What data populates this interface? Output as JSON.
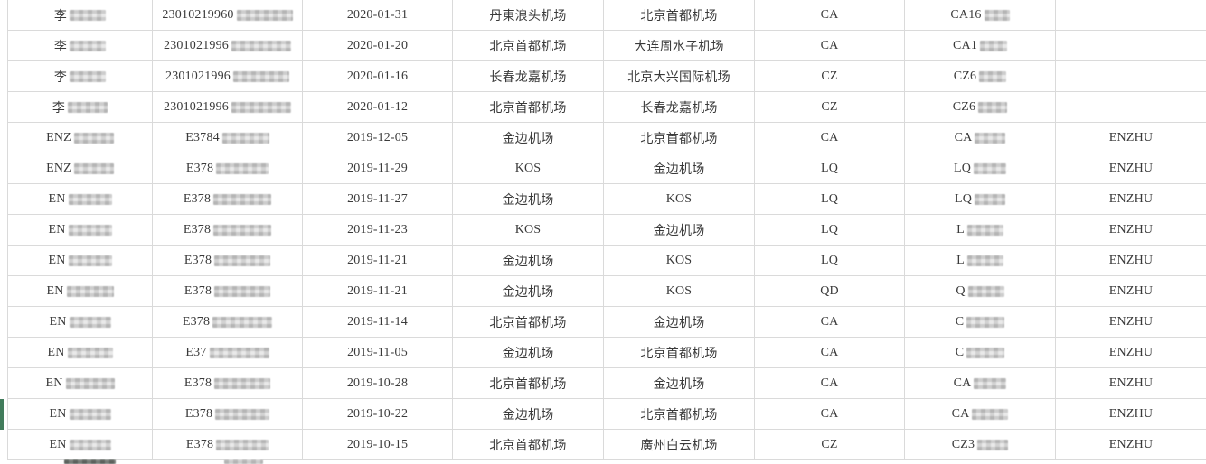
{
  "app": {
    "view": "spreadsheet-flight-records",
    "accent_selection_color": "#417c5b",
    "gridline_color": "#dadada",
    "text_color": "#3a3a3a"
  },
  "table": {
    "columns": [
      "name",
      "id_no",
      "date",
      "from_airport",
      "to_airport",
      "carrier",
      "flight_no",
      "passenger_tag"
    ],
    "rows": [
      {
        "name": {
          "t": "李",
          "r": 40
        },
        "id": {
          "t": "23010219960",
          "r": 62
        },
        "date": "2020-01-31",
        "from": "丹東浪头机场",
        "to": "北京首都机场",
        "carrier": "CA",
        "flight": {
          "t": "CA16",
          "r": 28
        },
        "tag": ""
      },
      {
        "name": {
          "t": "李",
          "r": 40
        },
        "id": {
          "t": "2301021996",
          "r": 66
        },
        "date": "2020-01-20",
        "from": "北京首都机场",
        "to": "大连周水子机场",
        "carrier": "CA",
        "flight": {
          "t": "CA1",
          "r": 30
        },
        "tag": ""
      },
      {
        "name": {
          "t": "李",
          "r": 40
        },
        "id": {
          "t": "2301021996",
          "r": 62
        },
        "date": "2020-01-16",
        "from": "长春龙嘉机场",
        "to": "北京大兴国际机场",
        "carrier": "CZ",
        "flight": {
          "t": "CZ6",
          "r": 30
        },
        "tag": ""
      },
      {
        "name": {
          "t": "李",
          "r": 44
        },
        "id": {
          "t": "2301021996",
          "r": 66
        },
        "date": "2020-01-12",
        "from": "北京首都机场",
        "to": "长春龙嘉机场",
        "carrier": "CZ",
        "flight": {
          "t": "CZ6",
          "r": 32
        },
        "tag": ""
      },
      {
        "name": {
          "t": "ENZ",
          "r": 44
        },
        "id": {
          "t": "E3784",
          "r": 52
        },
        "date": "2019-12-05",
        "from": "金边机场",
        "to": "北京首都机场",
        "carrier": "CA",
        "flight": {
          "t": "CA",
          "r": 34
        },
        "tag": "ENZHU"
      },
      {
        "name": {
          "t": "ENZ",
          "r": 44
        },
        "id": {
          "t": "E378",
          "r": 58
        },
        "date": "2019-11-29",
        "from": "KOS",
        "to": "金边机场",
        "carrier": "LQ",
        "flight": {
          "t": "LQ",
          "r": 36
        },
        "tag": "ENZHU"
      },
      {
        "name": {
          "t": "EN",
          "r": 48
        },
        "id": {
          "t": "E378",
          "r": 64
        },
        "date": "2019-11-27",
        "from": "金边机场",
        "to": "KOS",
        "carrier": "LQ",
        "flight": {
          "t": "LQ",
          "r": 34
        },
        "tag": "ENZHU"
      },
      {
        "name": {
          "t": "EN",
          "r": 48
        },
        "id": {
          "t": "E378",
          "r": 64
        },
        "date": "2019-11-23",
        "from": "KOS",
        "to": "金边机场",
        "carrier": "LQ",
        "flight": {
          "t": "L",
          "r": 40
        },
        "tag": "ENZHU"
      },
      {
        "name": {
          "t": "EN",
          "r": 48
        },
        "id": {
          "t": "E378",
          "r": 62
        },
        "date": "2019-11-21",
        "from": "金边机场",
        "to": "KOS",
        "carrier": "LQ",
        "flight": {
          "t": "L",
          "r": 40
        },
        "tag": "ENZHU"
      },
      {
        "name": {
          "t": "EN",
          "r": 52
        },
        "id": {
          "t": "E378",
          "r": 62
        },
        "date": "2019-11-21",
        "from": "金边机场",
        "to": "KOS",
        "carrier": "QD",
        "flight": {
          "t": "Q",
          "r": 40
        },
        "tag": "ENZHU"
      },
      {
        "name": {
          "t": "EN",
          "r": 46
        },
        "id": {
          "t": "E378",
          "r": 66
        },
        "date": "2019-11-14",
        "from": "北京首都机场",
        "to": "金边机场",
        "carrier": "CA",
        "flight": {
          "t": "C",
          "r": 42
        },
        "tag": "ENZHU"
      },
      {
        "name": {
          "t": "EN",
          "r": 50
        },
        "id": {
          "t": "E37",
          "r": 66
        },
        "date": "2019-11-05",
        "from": "金边机场",
        "to": "北京首都机场",
        "carrier": "CA",
        "flight": {
          "t": "C",
          "r": 42
        },
        "tag": "ENZHU"
      },
      {
        "name": {
          "t": "EN",
          "r": 54
        },
        "id": {
          "t": "E378",
          "r": 62
        },
        "date": "2019-10-28",
        "from": "北京首都机场",
        "to": "金边机场",
        "carrier": "CA",
        "flight": {
          "t": "CA",
          "r": 36
        },
        "tag": "ENZHU"
      },
      {
        "name": {
          "t": "EN",
          "r": 46
        },
        "id": {
          "t": "E378",
          "r": 60
        },
        "date": "2019-10-22",
        "from": "金边机场",
        "to": "北京首都机场",
        "carrier": "CA",
        "flight": {
          "t": "CA",
          "r": 40
        },
        "tag": "ENZHU"
      },
      {
        "name": {
          "t": "EN",
          "r": 46
        },
        "id": {
          "t": "E378",
          "r": 58
        },
        "date": "2019-10-15",
        "from": "北京首都机场",
        "to": "廣州白云机场",
        "carrier": "CZ",
        "flight": {
          "t": "CZ3",
          "r": 34
        },
        "tag": "ENZHU"
      }
    ],
    "selected_row_index": 13,
    "partial_bottom_row": {
      "visible": true,
      "redacted_cells": [
        {
          "column": "name",
          "dark": true
        },
        {
          "column": "id_no",
          "dark": false
        }
      ]
    }
  }
}
